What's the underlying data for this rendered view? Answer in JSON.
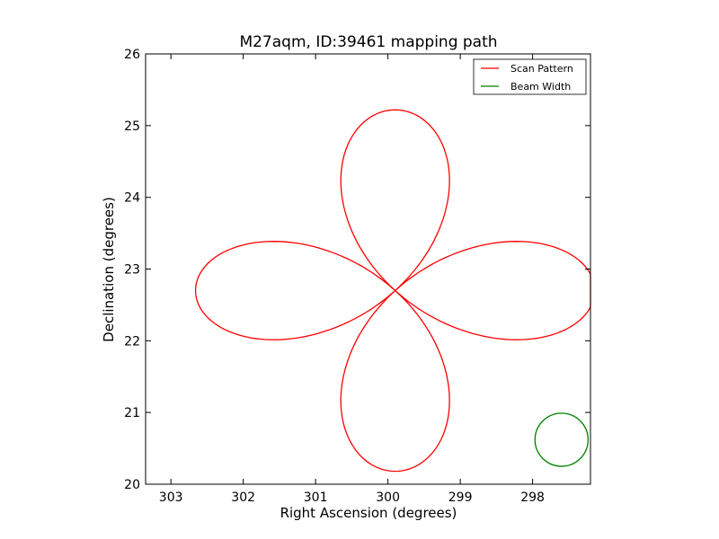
{
  "chart_data": {
    "type": "line",
    "title": "M27aqm, ID:39461 mapping path",
    "xlabel": "Right Ascension (degrees)",
    "ylabel": "Declination (degrees)",
    "xlim": [
      303.35,
      297.2
    ],
    "ylim": [
      20,
      26
    ],
    "x_inverted": true,
    "xticks": [
      "303",
      "302",
      "301",
      "300",
      "299",
      "298"
    ],
    "xtick_values": [
      303,
      302,
      301,
      300,
      299,
      298
    ],
    "yticks": [
      "20",
      "21",
      "22",
      "23",
      "24",
      "25",
      "26"
    ],
    "ytick_values": [
      20,
      21,
      22,
      23,
      24,
      25,
      26
    ],
    "grid": false,
    "legend_position": "top-right",
    "legend": [
      "Scan Pattern",
      "Beam Width"
    ],
    "series": [
      {
        "name": "Scan Pattern",
        "color": "#ff0000",
        "center": [
          299.9,
          22.7
        ],
        "petal_radius_dec": 2.52,
        "petal_radius_ra": 2.76,
        "x": [],
        "y": []
      },
      {
        "name": "Beam Width",
        "color": "#008000",
        "type": "circle",
        "center": [
          297.6,
          20.62
        ],
        "radius_dec": 0.37
      }
    ]
  }
}
